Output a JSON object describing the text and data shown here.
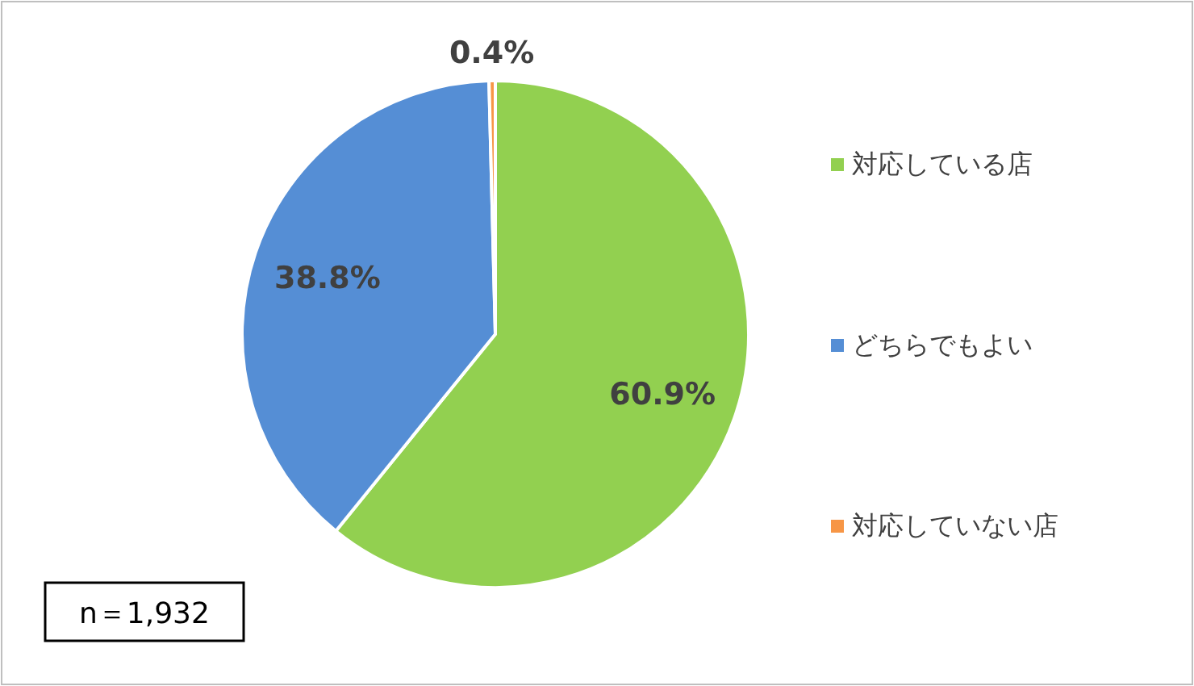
{
  "chart_data": {
    "type": "pie",
    "categories": [
      "対応している店",
      "どちらでもよい",
      "対応していない店"
    ],
    "values": [
      60.9,
      38.8,
      0.4
    ],
    "colors": [
      "#92d050",
      "#558ed5",
      "#f79646"
    ],
    "value_labels": [
      "60.9%",
      "38.8%",
      "0.4%"
    ],
    "legend": "right",
    "annotations": [
      "n＝1,932"
    ]
  }
}
